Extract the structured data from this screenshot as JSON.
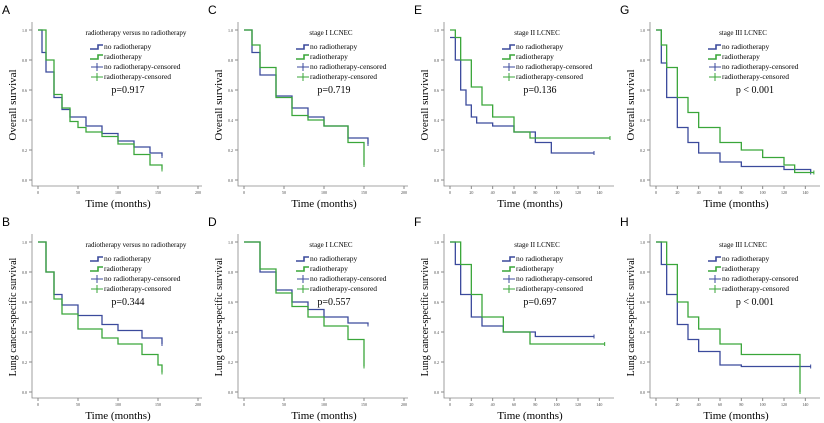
{
  "colors": {
    "no_radiotherapy": "#3b4a9c",
    "radiotherapy": "#3aa63a"
  },
  "chart_data": [
    {
      "panel": "A",
      "type": "line",
      "subtitle": "radiotherapy versus no radiotherapy",
      "ylabel": "Overall survival",
      "xlabel": "Time (months)",
      "p": "p=0.917",
      "xlim": [
        0,
        200
      ],
      "xticks": [
        0,
        50,
        100,
        150,
        200
      ],
      "ylim": [
        0,
        1
      ],
      "yticks": [
        "0.0",
        "0.2",
        "0.4",
        "0.6",
        "0.8",
        "1.0"
      ],
      "series": [
        {
          "name": "no radiotherapy",
          "x": [
            0,
            5,
            10,
            20,
            30,
            40,
            60,
            80,
            100,
            120,
            140,
            155
          ],
          "y": [
            1,
            0.85,
            0.72,
            0.55,
            0.47,
            0.42,
            0.36,
            0.31,
            0.26,
            0.22,
            0.18,
            0.16
          ]
        },
        {
          "name": "radiotherapy",
          "x": [
            0,
            10,
            20,
            30,
            40,
            50,
            60,
            80,
            100,
            120,
            140,
            155
          ],
          "y": [
            1,
            0.8,
            0.57,
            0.48,
            0.39,
            0.35,
            0.32,
            0.29,
            0.24,
            0.17,
            0.1,
            0.07
          ]
        }
      ]
    },
    {
      "panel": "C",
      "type": "line",
      "subtitle": "stage I LCNEC",
      "ylabel": "Overall survival",
      "xlabel": "Time (months)",
      "p": "p=0.719",
      "xlim": [
        0,
        200
      ],
      "xticks": [
        0,
        50,
        100,
        150,
        200
      ],
      "ylim": [
        0,
        1
      ],
      "yticks": [
        "0.0",
        "0.2",
        "0.4",
        "0.6",
        "0.8",
        "1.0"
      ],
      "series": [
        {
          "name": "no radiotherapy",
          "x": [
            0,
            10,
            20,
            40,
            60,
            80,
            100,
            130,
            155
          ],
          "y": [
            1,
            0.85,
            0.7,
            0.56,
            0.48,
            0.42,
            0.36,
            0.28,
            0.24
          ]
        },
        {
          "name": "radiotherapy",
          "x": [
            0,
            10,
            20,
            40,
            60,
            80,
            100,
            130,
            150
          ],
          "y": [
            1,
            0.9,
            0.75,
            0.55,
            0.43,
            0.4,
            0.36,
            0.25,
            0.1
          ]
        }
      ]
    },
    {
      "panel": "E",
      "type": "line",
      "subtitle": "stage II LCNEC",
      "ylabel": "Overall survival",
      "xlabel": "Time (months)",
      "p": "p=0.136",
      "xlim": [
        0,
        150
      ],
      "xticks": [
        0,
        20,
        40,
        60,
        80,
        100,
        120,
        140
      ],
      "ylim": [
        0,
        1
      ],
      "yticks": [
        "0.0",
        "0.2",
        "0.4",
        "0.6",
        "0.8",
        "1.0"
      ],
      "series": [
        {
          "name": "no radiotherapy",
          "x": [
            0,
            5,
            10,
            15,
            20,
            25,
            40,
            60,
            80,
            95,
            135
          ],
          "y": [
            0.95,
            0.8,
            0.6,
            0.5,
            0.42,
            0.38,
            0.36,
            0.32,
            0.25,
            0.18,
            0.18
          ]
        },
        {
          "name": "radiotherapy",
          "x": [
            0,
            5,
            10,
            20,
            30,
            40,
            60,
            75,
            150
          ],
          "y": [
            1,
            0.95,
            0.8,
            0.62,
            0.5,
            0.42,
            0.32,
            0.28,
            0.28
          ]
        }
      ]
    },
    {
      "panel": "G",
      "type": "line",
      "subtitle": "stage III LCNEC",
      "ylabel": "Overall survival",
      "xlabel": "Time (months)",
      "p": "p < 0.001",
      "xlim": [
        0,
        150
      ],
      "xticks": [
        0,
        20,
        40,
        60,
        80,
        100,
        120,
        140
      ],
      "ylim": [
        0,
        1
      ],
      "yticks": [
        "0.0",
        "0.2",
        "0.4",
        "0.6",
        "0.8",
        "1.0"
      ],
      "series": [
        {
          "name": "no radiotherapy",
          "x": [
            0,
            5,
            10,
            20,
            30,
            40,
            60,
            80,
            120,
            145
          ],
          "y": [
            1,
            0.78,
            0.55,
            0.35,
            0.25,
            0.18,
            0.12,
            0.09,
            0.07,
            0.05
          ]
        },
        {
          "name": "radiotherapy",
          "x": [
            0,
            5,
            10,
            20,
            30,
            40,
            60,
            80,
            100,
            120,
            130,
            148
          ],
          "y": [
            1,
            0.9,
            0.75,
            0.55,
            0.45,
            0.35,
            0.25,
            0.2,
            0.15,
            0.1,
            0.05,
            0.05
          ]
        }
      ]
    },
    {
      "panel": "B",
      "type": "line",
      "subtitle": "radiotherapy versus no radiotherapy",
      "ylabel": "Lung cancer-specific survival",
      "xlabel": "Time (months)",
      "p": "p=0.344",
      "xlim": [
        0,
        200
      ],
      "xticks": [
        0,
        50,
        100,
        150,
        200
      ],
      "ylim": [
        0,
        1
      ],
      "yticks": [
        "0.0",
        "0.2",
        "0.4",
        "0.6",
        "0.8",
        "1.0"
      ],
      "series": [
        {
          "name": "no radiotherapy",
          "x": [
            0,
            10,
            20,
            30,
            50,
            80,
            100,
            130,
            155
          ],
          "y": [
            1,
            0.8,
            0.65,
            0.58,
            0.51,
            0.45,
            0.41,
            0.36,
            0.32
          ]
        },
        {
          "name": "radiotherapy",
          "x": [
            0,
            10,
            20,
            30,
            50,
            80,
            100,
            130,
            150,
            155
          ],
          "y": [
            1,
            0.8,
            0.62,
            0.52,
            0.42,
            0.36,
            0.32,
            0.25,
            0.18,
            0.13
          ]
        }
      ]
    },
    {
      "panel": "D",
      "type": "line",
      "subtitle": "stage I LCNEC",
      "ylabel": "Lung cancer-specific survival",
      "xlabel": "Time (months)",
      "p": "p=0.557",
      "xlim": [
        0,
        200
      ],
      "xticks": [
        0,
        50,
        100,
        150,
        200
      ],
      "ylim": [
        0,
        1
      ],
      "yticks": [
        "0.0",
        "0.2",
        "0.4",
        "0.6",
        "0.8",
        "1.0"
      ],
      "series": [
        {
          "name": "no radiotherapy",
          "x": [
            0,
            20,
            40,
            60,
            80,
            100,
            130,
            155
          ],
          "y": [
            1,
            0.8,
            0.68,
            0.6,
            0.55,
            0.5,
            0.46,
            0.45
          ]
        },
        {
          "name": "radiotherapy",
          "x": [
            0,
            20,
            40,
            60,
            80,
            100,
            130,
            145,
            150
          ],
          "y": [
            1,
            0.82,
            0.66,
            0.57,
            0.5,
            0.44,
            0.35,
            0.35,
            0.17
          ]
        }
      ]
    },
    {
      "panel": "F",
      "type": "line",
      "subtitle": "stage II LCNEC",
      "ylabel": "Lung cancer-specific survival",
      "xlabel": "Time (months)",
      "p": "p=0.697",
      "xlim": [
        0,
        150
      ],
      "xticks": [
        0,
        20,
        40,
        60,
        80,
        100,
        120,
        140
      ],
      "ylim": [
        0,
        1
      ],
      "yticks": [
        "0.0",
        "0.2",
        "0.4",
        "0.6",
        "0.8",
        "1.0"
      ],
      "series": [
        {
          "name": "no radiotherapy",
          "x": [
            0,
            5,
            10,
            20,
            30,
            50,
            80,
            135
          ],
          "y": [
            1,
            0.85,
            0.65,
            0.5,
            0.44,
            0.4,
            0.37,
            0.37
          ]
        },
        {
          "name": "radiotherapy",
          "x": [
            0,
            10,
            20,
            30,
            50,
            75,
            145
          ],
          "y": [
            1,
            0.85,
            0.65,
            0.5,
            0.4,
            0.32,
            0.32
          ]
        }
      ]
    },
    {
      "panel": "H",
      "type": "line",
      "subtitle": "stage III LCNEC",
      "ylabel": "Lung cancer-specific survival",
      "xlabel": "Time (months)",
      "p": "p < 0.001",
      "xlim": [
        0,
        150
      ],
      "xticks": [
        0,
        20,
        40,
        60,
        80,
        100,
        120,
        140
      ],
      "ylim": [
        0,
        1
      ],
      "yticks": [
        "0.0",
        "0.2",
        "0.4",
        "0.6",
        "0.8",
        "1.0"
      ],
      "series": [
        {
          "name": "no radiotherapy",
          "x": [
            0,
            5,
            10,
            20,
            30,
            40,
            60,
            80,
            145
          ],
          "y": [
            1,
            0.85,
            0.65,
            0.45,
            0.35,
            0.27,
            0.18,
            0.17,
            0.17
          ]
        },
        {
          "name": "radiotherapy",
          "x": [
            0,
            10,
            20,
            30,
            40,
            60,
            80,
            130,
            135
          ],
          "y": [
            1,
            0.85,
            0.6,
            0.5,
            0.42,
            0.32,
            0.25,
            0.25,
            0
          ]
        }
      ]
    }
  ],
  "legend": [
    "no radiotherapy",
    "radiotherapy",
    "no radiotherapy-censored",
    "radiotherapy-censored"
  ]
}
